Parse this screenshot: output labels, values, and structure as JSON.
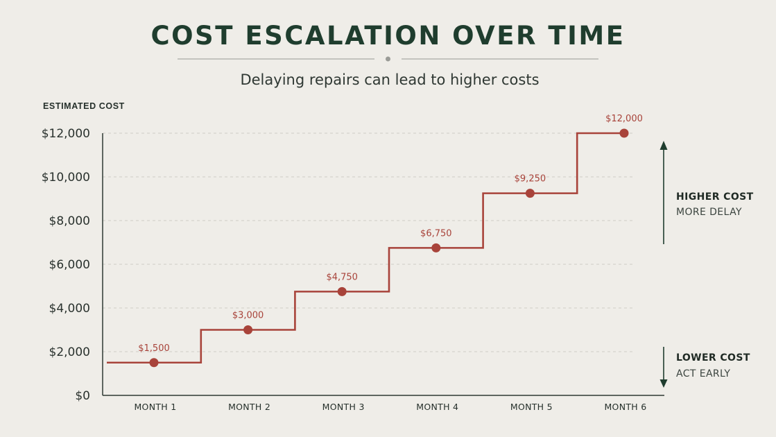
{
  "header": {
    "title": "COST ESCALATION OVER TIME",
    "subtitle": "Delaying repairs can lead to higher costs"
  },
  "chart_data": {
    "type": "line",
    "step": true,
    "title": "COST ESCALATION OVER TIME",
    "subtitle": "Delaying repairs can lead to higher costs",
    "ylabel": "ESTIMATED COST",
    "xlabel": "",
    "categories": [
      "MONTH 1",
      "MONTH 2",
      "MONTH 3",
      "MONTH 4",
      "MONTH 5",
      "MONTH 6"
    ],
    "values": [
      1500,
      3000,
      4750,
      6750,
      9250,
      12000
    ],
    "data_labels": [
      "$1,500",
      "$3,000",
      "$4,750",
      "$6,750",
      "$9,250",
      "$12,000"
    ],
    "ylim": [
      0,
      12000
    ],
    "yticks": [
      0,
      2000,
      4000,
      6000,
      8000,
      10000,
      12000
    ],
    "ytick_labels": [
      "$0",
      "$2,000",
      "$4,000",
      "$6,000",
      "$8,000",
      "$10,000",
      "$12,000"
    ],
    "grid": "horizontal dashed",
    "series_color": "#a8433a",
    "annotations": {
      "top_strong": "HIGHER COST",
      "top_light": "MORE DELAY",
      "bottom_strong": "LOWER COST",
      "bottom_light": "ACT EARLY",
      "arrow_color": "#1f3d2e"
    }
  }
}
